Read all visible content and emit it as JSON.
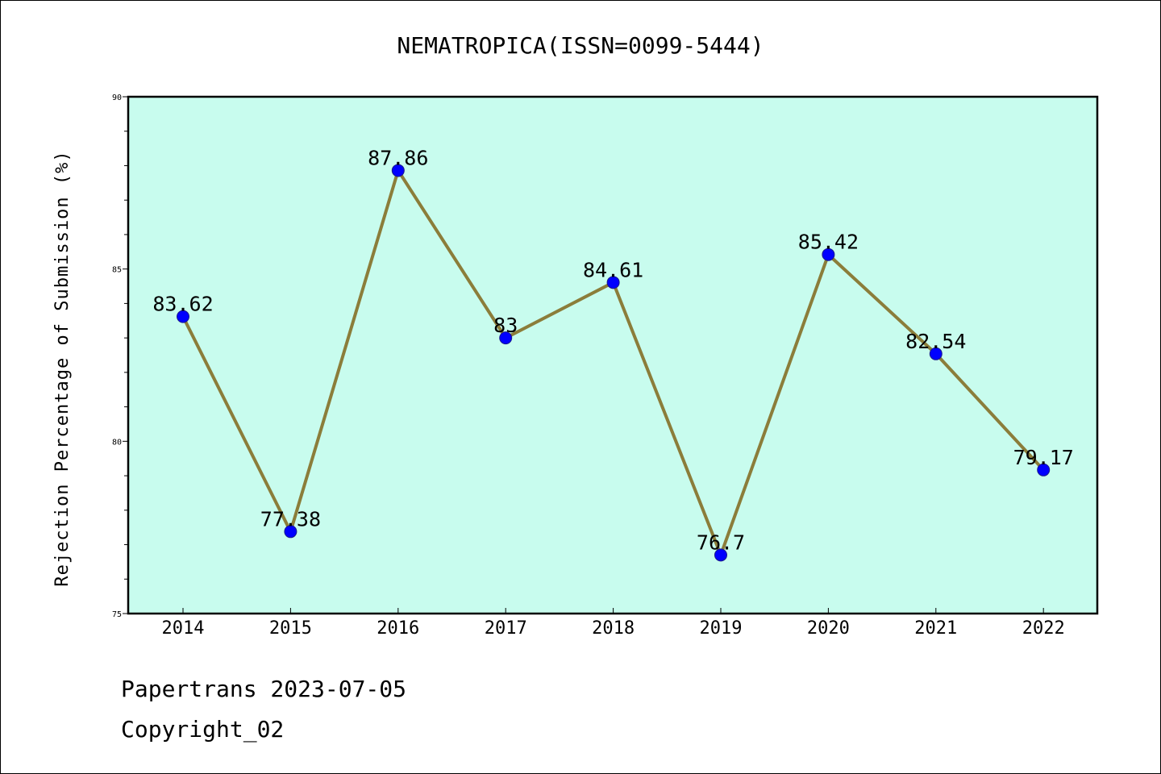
{
  "chart_data": {
    "type": "line",
    "title": "NEMATROPICA(ISSN=0099-5444)",
    "xlabel": "",
    "ylabel": "Rejection Percentage of Submission (%)",
    "categories": [
      "2014",
      "2015",
      "2016",
      "2017",
      "2018",
      "2019",
      "2020",
      "2021",
      "2022"
    ],
    "series": [
      {
        "values": [
          83.62,
          77.38,
          87.86,
          83,
          84.61,
          76.7,
          85.42,
          82.54,
          79.17
        ]
      }
    ],
    "data_labels": [
      "83.62",
      "77.38",
      "87.86",
      "83",
      "84.61",
      "76.7",
      "85.42",
      "82.54",
      "79.17"
    ],
    "ylim": [
      75,
      90
    ],
    "yticks": [
      75,
      80,
      85,
      90
    ],
    "ytick_labels": [
      "75",
      "80",
      "85",
      "90"
    ],
    "grid": false,
    "colors": {
      "plot_background": "#c8fcee",
      "line": "#8b7d3a",
      "marker": "#0000ff",
      "marker_edge": "#1a1a8a"
    }
  },
  "footer": {
    "line1": "Papertrans 2023-07-05",
    "line2": "Copyright_02"
  }
}
